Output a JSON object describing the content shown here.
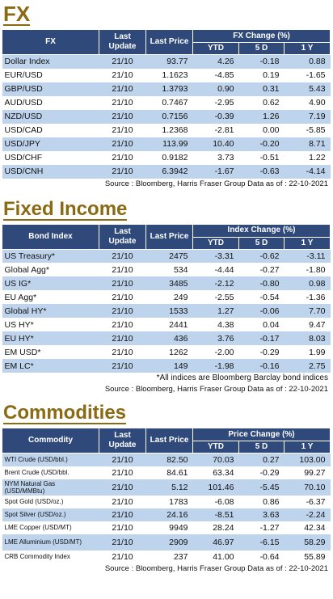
{
  "fx": {
    "title": "FX",
    "headers": {
      "name": "FX",
      "last_update": "Last Update",
      "last_price": "Last Price",
      "change": "FX Change (%)",
      "ytd": "YTD",
      "d5": "5 D",
      "y1": "1 Y"
    },
    "rows": [
      {
        "name": "Dollar Index",
        "date": "21/10",
        "price": "93.77",
        "ytd": "4.26",
        "d5": "-0.18",
        "y1": "0.88"
      },
      {
        "name": "EUR/USD",
        "date": "21/10",
        "price": "1.1623",
        "ytd": "-4.85",
        "d5": "0.19",
        "y1": "-1.65"
      },
      {
        "name": "GBP/USD",
        "date": "21/10",
        "price": "1.3793",
        "ytd": "0.90",
        "d5": "0.31",
        "y1": "5.43"
      },
      {
        "name": "AUD/USD",
        "date": "21/10",
        "price": "0.7467",
        "ytd": "-2.95",
        "d5": "0.62",
        "y1": "4.90"
      },
      {
        "name": "NZD/USD",
        "date": "21/10",
        "price": "0.7156",
        "ytd": "-0.39",
        "d5": "1.26",
        "y1": "7.19"
      },
      {
        "name": "USD/CAD",
        "date": "21/10",
        "price": "1.2368",
        "ytd": "-2.81",
        "d5": "0.00",
        "y1": "-5.85"
      },
      {
        "name": "USD/JPY",
        "date": "21/10",
        "price": "113.99",
        "ytd": "10.40",
        "d5": "-0.20",
        "y1": "8.71"
      },
      {
        "name": "USD/CHF",
        "date": "21/10",
        "price": "0.9182",
        "ytd": "3.73",
        "d5": "-0.51",
        "y1": "1.22"
      },
      {
        "name": "USD/CNH",
        "date": "21/10",
        "price": "6.3942",
        "ytd": "-1.67",
        "d5": "-0.63",
        "y1": "-4.14"
      }
    ],
    "source": "Source : Bloomberg, Harris Fraser Group Data as of : 22-10-2021"
  },
  "fixed_income": {
    "title": "Fixed Income",
    "headers": {
      "name": "Bond Index",
      "last_update": "Last Update",
      "last_price": "Last Price",
      "change": "Index Change (%)",
      "ytd": "YTD",
      "d5": "5 D",
      "y1": "1 Y"
    },
    "rows": [
      {
        "name": "US Treasury*",
        "date": "21/10",
        "price": "2475",
        "ytd": "-3.31",
        "d5": "-0.62",
        "y1": "-3.11"
      },
      {
        "name": "Global Agg*",
        "date": "21/10",
        "price": "534",
        "ytd": "-4.44",
        "d5": "-0.27",
        "y1": "-1.80"
      },
      {
        "name": "US IG*",
        "date": "21/10",
        "price": "3485",
        "ytd": "-2.12",
        "d5": "-0.80",
        "y1": "0.98"
      },
      {
        "name": "EU Agg*",
        "date": "21/10",
        "price": "249",
        "ytd": "-2.55",
        "d5": "-0.54",
        "y1": "-1.36"
      },
      {
        "name": "Global HY*",
        "date": "21/10",
        "price": "1533",
        "ytd": "1.27",
        "d5": "-0.06",
        "y1": "7.70"
      },
      {
        "name": "US HY*",
        "date": "21/10",
        "price": "2441",
        "ytd": "4.38",
        "d5": "0.04",
        "y1": "9.47"
      },
      {
        "name": "EU HY*",
        "date": "21/10",
        "price": "436",
        "ytd": "3.76",
        "d5": "-0.17",
        "y1": "8.03"
      },
      {
        "name": "EM USD*",
        "date": "21/10",
        "price": "1262",
        "ytd": "-2.00",
        "d5": "-0.29",
        "y1": "1.99"
      },
      {
        "name": "EM LC*",
        "date": "21/10",
        "price": "149",
        "ytd": "-1.98",
        "d5": "-0.16",
        "y1": "2.75"
      }
    ],
    "note": "*All indices are Bloomberg Barclay bond indices",
    "source": "Source : Bloomberg, Harris Fraser Group Data as of : 22-10-2021"
  },
  "commodities": {
    "title": "Commodities",
    "headers": {
      "name": "Commodity",
      "last_update": "Last Update",
      "last_price": "Last Price",
      "change": "Price Change (%)",
      "ytd": "YTD",
      "d5": "5 D",
      "y1": "1 Y"
    },
    "rows": [
      {
        "name": "WTI Crude (USD/bbl.)",
        "date": "21/10",
        "price": "82.50",
        "ytd": "70.03",
        "d5": "0.27",
        "y1": "103.00"
      },
      {
        "name": "Brent Crude (USD/bbl.",
        "date": "21/10",
        "price": "84.61",
        "ytd": "63.34",
        "d5": "-0.29",
        "y1": "99.27"
      },
      {
        "name": "NYM Natural Gas (USD/MMBtu)",
        "date": "21/10",
        "price": "5.12",
        "ytd": "101.46",
        "d5": "-5.45",
        "y1": "70.10"
      },
      {
        "name": "Spot Gold (USD/oz.)",
        "date": "21/10",
        "price": "1783",
        "ytd": "-6.08",
        "d5": "0.86",
        "y1": "-6.37"
      },
      {
        "name": "Spot Silver (USD/oz.)",
        "date": "21/10",
        "price": "24.16",
        "ytd": "-8.51",
        "d5": "3.63",
        "y1": "-2.24"
      },
      {
        "name": "LME Copper (USD/MT)",
        "date": "21/10",
        "price": "9949",
        "ytd": "28.24",
        "d5": "-1.27",
        "y1": "42.34"
      },
      {
        "name": "LME Alluminium (USD/MT)",
        "date": "21/10",
        "price": "2909",
        "ytd": "46.97",
        "d5": "-6.15",
        "y1": "58.29"
      },
      {
        "name": "CRB Commodity Index",
        "date": "21/10",
        "price": "237",
        "ytd": "41.00",
        "d5": "-0.64",
        "y1": "55.89"
      }
    ],
    "source": "Source : Bloomberg, Harris Fraser Group Data as of : 22-10-2021"
  },
  "colors": {
    "header_bg": "#2f4a7a",
    "band": "#bed3ec",
    "title": "#8a6a12"
  }
}
